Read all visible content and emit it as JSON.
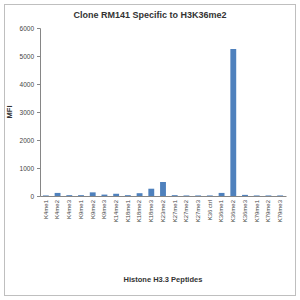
{
  "chart_data": {
    "type": "bar",
    "title": "Clone RM141 Specific to H3K36me2",
    "x_label": "Histone H3.3 Peptides",
    "y_label": "MFI",
    "categories": [
      "K4me1",
      "K4me2",
      "K4me3",
      "K9me1",
      "K9me2",
      "K9me3",
      "K14me2",
      "K18me1",
      "K18me2",
      "K18me3",
      "K23me2",
      "K27me1",
      "K27me2",
      "K27me3",
      "K36 ctrl",
      "K36me1",
      "K36me2",
      "K36me3",
      "K79me1",
      "K79me2",
      "K79me3"
    ],
    "values": [
      20,
      110,
      30,
      30,
      130,
      50,
      80,
      30,
      100,
      260,
      500,
      30,
      20,
      20,
      20,
      110,
      5250,
      40,
      20,
      20,
      20
    ],
    "color": "#4f81bd",
    "ylim": [
      0,
      6000
    ],
    "yticks": [
      0,
      1000,
      2000,
      3000,
      4000,
      5000,
      6000
    ],
    "grid": false
  }
}
